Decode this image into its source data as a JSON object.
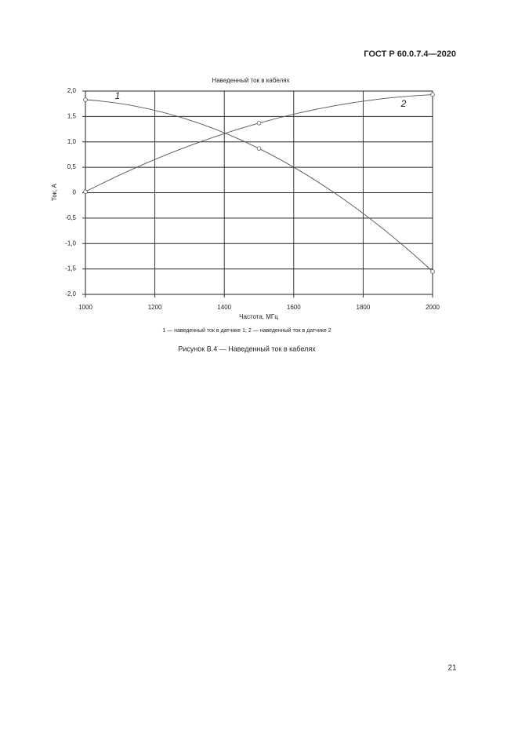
{
  "header": "ГОСТ Р 60.0.7.4—2020",
  "chart_data": {
    "type": "line",
    "title": "Наведенный ток в кабелях",
    "x_label": "Частота, МГц",
    "y_label": "Ток, А",
    "legend_text": "1 — наведенный ток в датчике 1; 2 — наведенный ток в датчике 2",
    "x": [
      1000,
      1500,
      2000
    ],
    "series": [
      {
        "name": "1",
        "color": "#555555",
        "values": [
          1.83,
          0.87,
          -1.55
        ]
      },
      {
        "name": "2",
        "color": "#555555",
        "values": [
          0.02,
          1.37,
          1.93
        ]
      }
    ],
    "xlim": [
      1000,
      2000
    ],
    "xticks": [
      1000,
      1200,
      1400,
      1600,
      1800,
      2000
    ],
    "ylim": [
      -2,
      2
    ],
    "yticks": [
      {
        "value": 2,
        "label": "2,0"
      },
      {
        "value": 1.5,
        "label": "1,5"
      },
      {
        "value": 1,
        "label": "1,0"
      },
      {
        "value": 0.5,
        "label": "0,5"
      },
      0,
      {
        "value": -0.5,
        "label": "-0,5"
      },
      {
        "value": -1,
        "label": "-1,0"
      },
      {
        "value": -1.5,
        "label": "-1,5"
      },
      {
        "value": -2,
        "label": "-2,0"
      }
    ],
    "grid": true
  },
  "figure_caption": "Рисунок В.4 — Наведенный ток в кабелях",
  "page_number": "21"
}
